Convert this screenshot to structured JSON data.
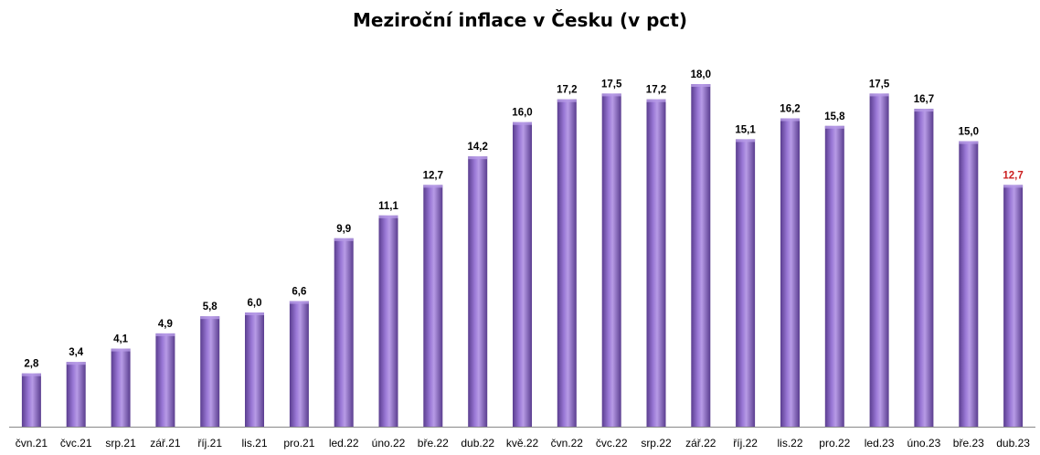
{
  "chart_data": {
    "type": "bar",
    "title": "Meziroční inflace v Česku (v pct)",
    "xlabel": "",
    "ylabel": "",
    "ylim": [
      0,
      20
    ],
    "grid": false,
    "legend": "none",
    "categories": [
      "čvn.21",
      "čvc.21",
      "srp.21",
      "zář.21",
      "říj.21",
      "lis.21",
      "pro.21",
      "led.22",
      "úno.22",
      "bře.22",
      "dub.22",
      "kvě.22",
      "čvn.22",
      "čvc.22",
      "srp.22",
      "zář.22",
      "říj.22",
      "lis.22",
      "pro.22",
      "led.23",
      "úno.23",
      "bře.23",
      "dub.23"
    ],
    "values": [
      2.8,
      3.4,
      4.1,
      4.9,
      5.8,
      6.0,
      6.6,
      9.9,
      11.1,
      12.7,
      14.2,
      16.0,
      17.2,
      17.5,
      17.2,
      18.0,
      15.1,
      16.2,
      15.8,
      17.5,
      16.7,
      15.0,
      12.7
    ],
    "data_labels": [
      "2,8",
      "3,4",
      "4,1",
      "4,9",
      "5,8",
      "6,0",
      "6,6",
      "9,9",
      "11,1",
      "12,7",
      "14,2",
      "16,0",
      "17,2",
      "17,5",
      "17,2",
      "18,0",
      "15,1",
      "16,2",
      "15,8",
      "17,5",
      "16,7",
      "15,0",
      "12,7"
    ],
    "colors": {
      "bar_dark": "#5a3d8f",
      "bar_mid": "#8a66c9",
      "bar_light": "#b79be6",
      "label_default": "#000000",
      "label_highlight": "#cc1f1f",
      "axis": "#888888"
    },
    "highlight_index": 22
  }
}
